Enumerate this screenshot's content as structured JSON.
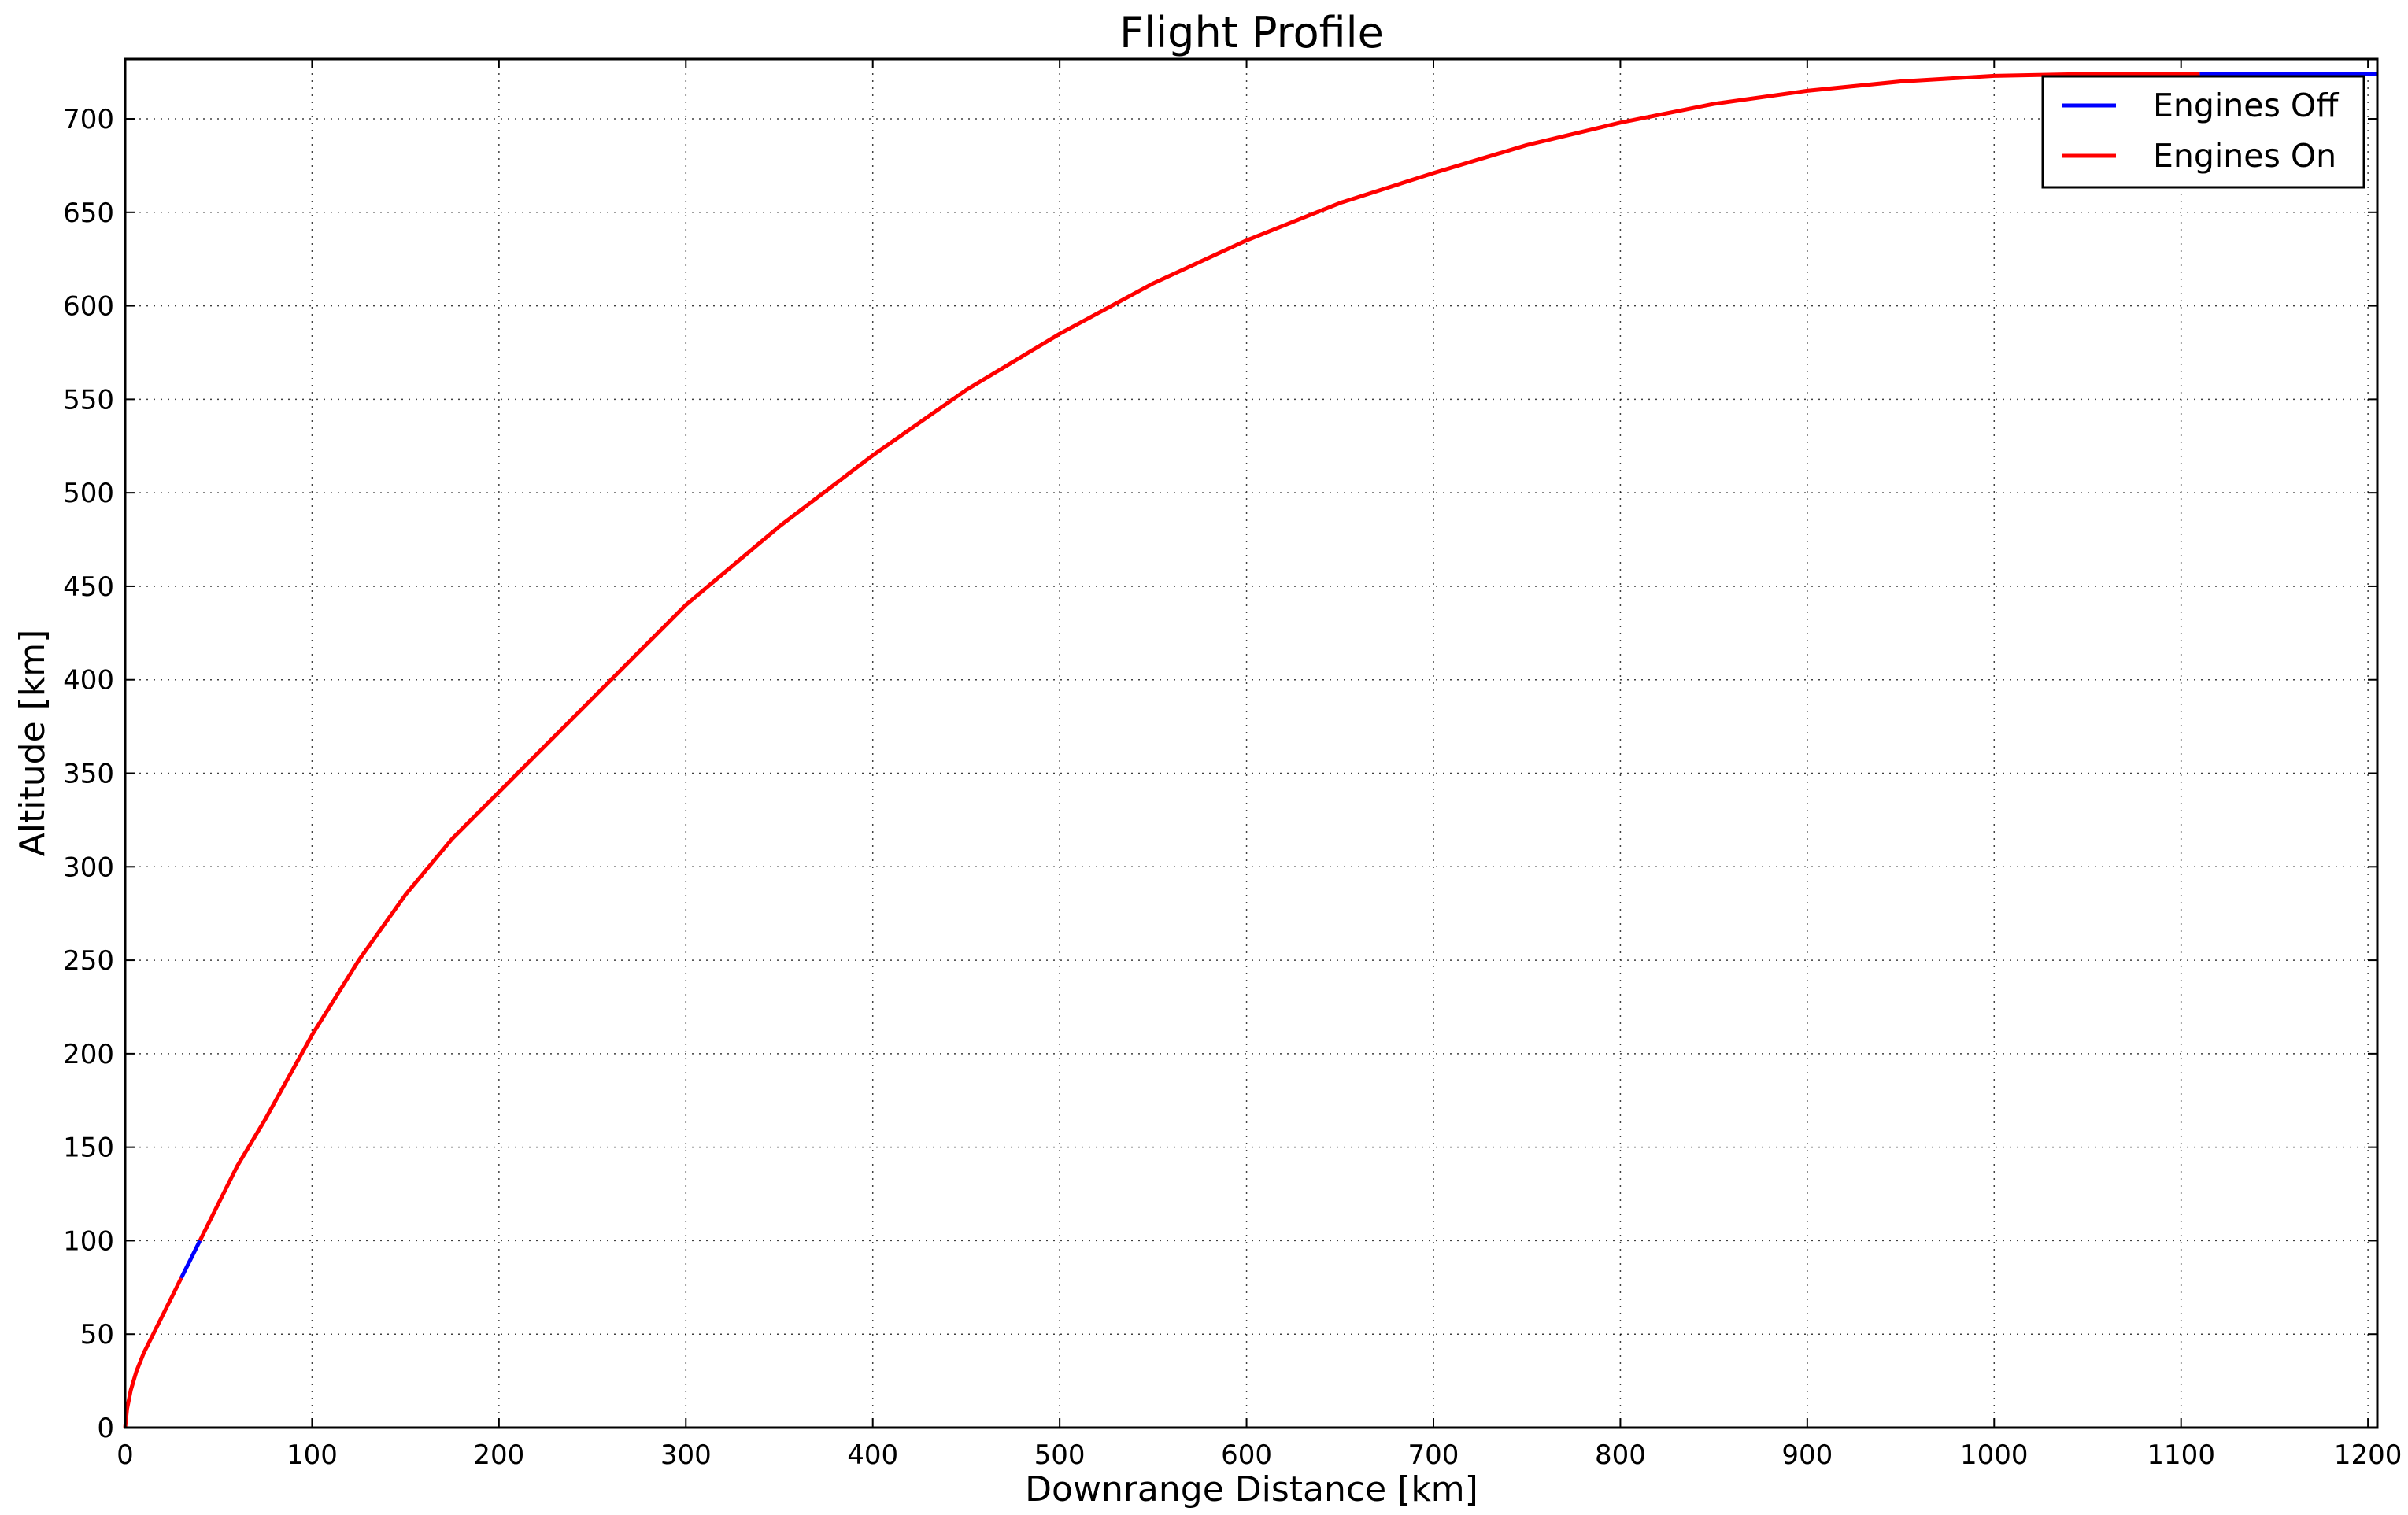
{
  "chart_data": {
    "type": "line",
    "title": "Flight Profile",
    "xlabel": "Downrange Distance [km]",
    "ylabel": "Altitude [km]",
    "xlim": [
      0,
      1205
    ],
    "ylim": [
      0,
      732
    ],
    "xticks": [
      0,
      100,
      200,
      300,
      400,
      500,
      600,
      700,
      800,
      900,
      1000,
      1100,
      1200
    ],
    "yticks": [
      0,
      50,
      100,
      150,
      200,
      250,
      300,
      350,
      400,
      450,
      500,
      550,
      600,
      650,
      700
    ],
    "grid": true,
    "legend_position": "top-right",
    "colors": {
      "engines_off": "#0000ff",
      "engines_on": "#ff0000"
    },
    "legend": [
      {
        "label": "Engines Off",
        "color": "#0000ff"
      },
      {
        "label": "Engines On",
        "color": "#ff0000"
      }
    ],
    "series": [
      {
        "name": "Engines Off",
        "color": "#0000ff",
        "segments": [
          [
            [
              30,
              80
            ],
            [
              35,
              90
            ],
            [
              40,
              100
            ]
          ],
          [
            [
              1110,
              724
            ],
            [
              1150,
              724
            ],
            [
              1205,
              724
            ]
          ]
        ]
      },
      {
        "name": "Engines On",
        "color": "#ff0000",
        "segments": [
          [
            [
              0,
              0
            ],
            [
              1,
              10
            ],
            [
              3,
              20
            ],
            [
              6,
              30
            ],
            [
              10,
              40
            ],
            [
              15,
              50
            ],
            [
              20,
              60
            ],
            [
              25,
              70
            ],
            [
              30,
              80
            ]
          ],
          [
            [
              40,
              100
            ],
            [
              50,
              120
            ],
            [
              60,
              140
            ],
            [
              75,
              165
            ],
            [
              100,
              210
            ],
            [
              125,
              250
            ],
            [
              150,
              285
            ],
            [
              175,
              315
            ],
            [
              200,
              340
            ],
            [
              250,
              390
            ],
            [
              300,
              440
            ],
            [
              350,
              482
            ],
            [
              400,
              520
            ],
            [
              450,
              555
            ],
            [
              500,
              585
            ],
            [
              550,
              612
            ],
            [
              600,
              635
            ],
            [
              650,
              655
            ],
            [
              700,
              671
            ],
            [
              750,
              686
            ],
            [
              800,
              698
            ],
            [
              850,
              708
            ],
            [
              900,
              715
            ],
            [
              950,
              720
            ],
            [
              1000,
              723
            ],
            [
              1050,
              724
            ],
            [
              1110,
              724
            ]
          ]
        ]
      }
    ]
  }
}
